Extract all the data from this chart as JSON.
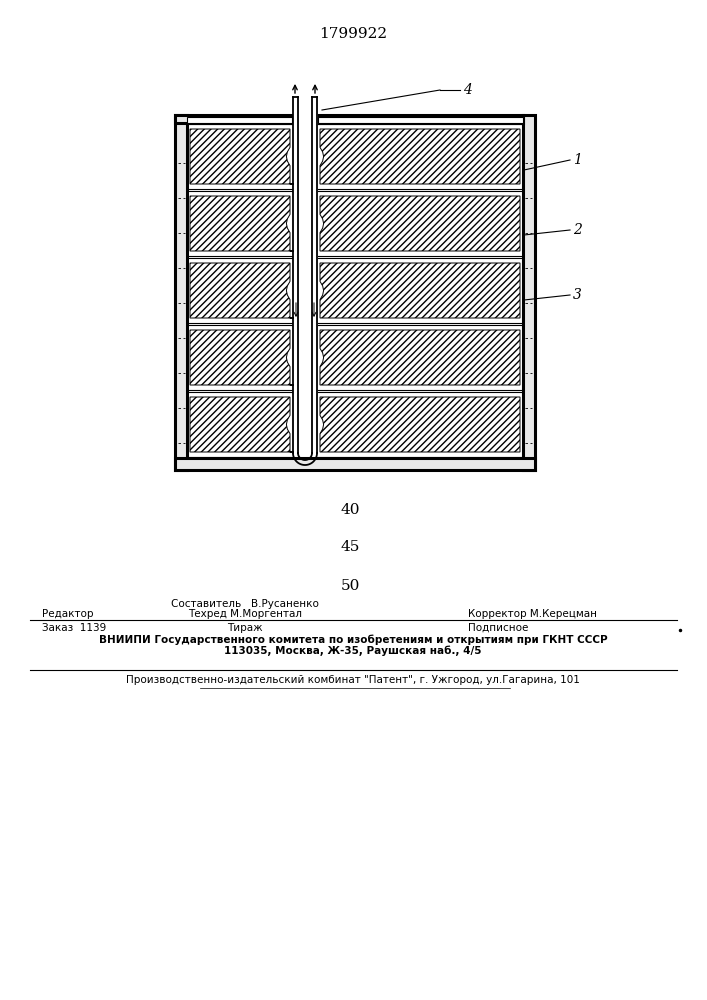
{
  "patent_number": "1799922",
  "num_40": "40",
  "num_45": "45",
  "num_50": "50",
  "label_1": "1",
  "label_2": "2",
  "label_3": "3",
  "label_4": "4",
  "editor_line": "Редактор",
  "sostavitel": "Составитель   В.Русаненко",
  "tekhred": "Техред М.Моргентал",
  "korrektor": "Корректор М.Керецман",
  "zakaz": "Заказ  1139",
  "tirazh": "Тираж",
  "podpisnoe": "Подписное",
  "vnipi_line": "ВНИИПИ Государственного комитета по изобретениям и открытиям при ГКНТ СССР",
  "addr_line": "113035, Москва, Ж-35, Раушская наб., 4/5",
  "proizv_line": "Производственно-издательский комбинат \"Патент\", г. Ужгород, ул.Гагарина, 101",
  "bg_color": "#ffffff",
  "line_color": "#000000"
}
